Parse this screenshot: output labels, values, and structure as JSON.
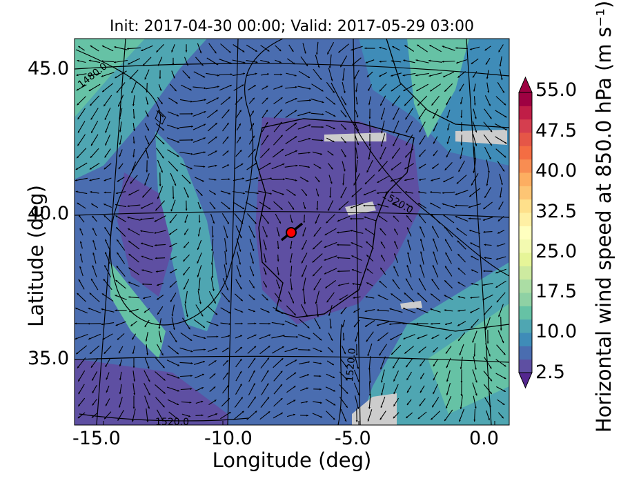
{
  "title": "Init: 2017-04-30 00:00; Valid: 2017-05-29 03:00",
  "axes": {
    "xlabel": "Longitude (deg)",
    "ylabel": "Latitude (deg)",
    "xticks": [
      "-15.0",
      "-10.0",
      "-5.0",
      "0.0"
    ],
    "yticks": [
      "45.0",
      "40.0",
      "35.0"
    ]
  },
  "colorbar": {
    "label": "Horizontal wind speed at 850.0 hPa (m s⁻¹)",
    "ticks": [
      "55.0",
      "47.5",
      "40.0",
      "32.5",
      "25.0",
      "17.5",
      "10.0",
      "2.5"
    ],
    "min": 2.5,
    "max": 55.0,
    "step": 2.5,
    "colors": [
      "#5e4fa2",
      "#4a6db0",
      "#3f8cb8",
      "#4fa6b2",
      "#66c2a5",
      "#8fd1a4",
      "#abdda4",
      "#cdeaa0",
      "#e6f598",
      "#f3fab0",
      "#ffffbf",
      "#fff0a4",
      "#fee08b",
      "#fdc574",
      "#fdae61",
      "#f88d52",
      "#f46d43",
      "#e55647",
      "#d53e4f",
      "#c01e47",
      "#9e0142"
    ]
  },
  "contours": [
    {
      "label": "1480.0"
    },
    {
      "label": "1520.0"
    },
    {
      "label": "1520.0"
    },
    {
      "label": "1520.0"
    }
  ],
  "map": {
    "lon_range": [
      -16.0,
      0.2
    ],
    "lat_range": [
      32.8,
      46.0
    ],
    "marker": {
      "lon": -7.7,
      "lat": 39.35,
      "color": "#ff0000"
    }
  }
}
